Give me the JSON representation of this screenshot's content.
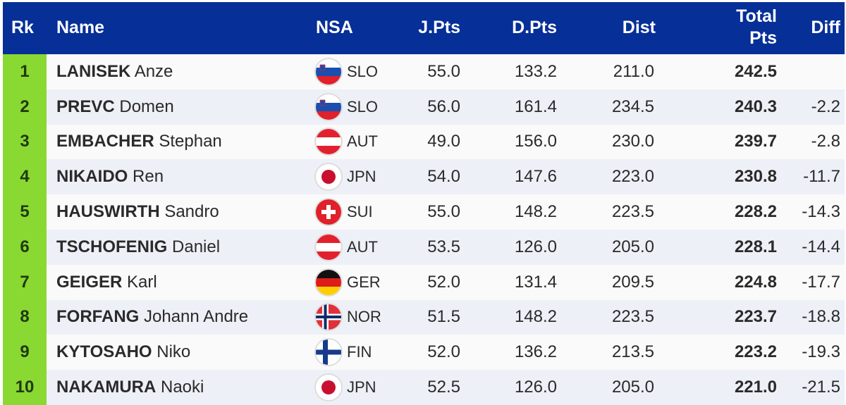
{
  "header": {
    "rank": "Rk",
    "name": "Name",
    "nsa": "NSA",
    "jpts": "J.Pts",
    "dpts": "D.Pts",
    "dist": "Dist",
    "total_line1": "Total",
    "total_line2": "Pts",
    "diff": "Diff"
  },
  "colors": {
    "header_bg": "#062f97",
    "rank_bg": "#8ad832"
  },
  "rows": [
    {
      "rank": "1",
      "last": "LANISEK",
      "first": "Anze",
      "nsa": "SLO",
      "flag": "slovenia-flag-icon",
      "jpts": "55.0",
      "dpts": "133.2",
      "dist": "211.0",
      "total": "242.5",
      "diff": ""
    },
    {
      "rank": "2",
      "last": "PREVC",
      "first": "Domen",
      "nsa": "SLO",
      "flag": "slovenia-flag-icon",
      "jpts": "56.0",
      "dpts": "161.4",
      "dist": "234.5",
      "total": "240.3",
      "diff": "-2.2"
    },
    {
      "rank": "3",
      "last": "EMBACHER",
      "first": "Stephan",
      "nsa": "AUT",
      "flag": "austria-flag-icon",
      "jpts": "49.0",
      "dpts": "156.0",
      "dist": "230.0",
      "total": "239.7",
      "diff": "-2.8"
    },
    {
      "rank": "4",
      "last": "NIKAIDO",
      "first": "Ren",
      "nsa": "JPN",
      "flag": "japan-flag-icon",
      "jpts": "54.0",
      "dpts": "147.6",
      "dist": "223.0",
      "total": "230.8",
      "diff": "-11.7"
    },
    {
      "rank": "5",
      "last": "HAUSWIRTH",
      "first": "Sandro",
      "nsa": "SUI",
      "flag": "switzerland-flag-icon",
      "jpts": "55.0",
      "dpts": "148.2",
      "dist": "223.5",
      "total": "228.2",
      "diff": "-14.3"
    },
    {
      "rank": "6",
      "last": "TSCHOFENIG",
      "first": "Daniel",
      "nsa": "AUT",
      "flag": "austria-flag-icon",
      "jpts": "53.5",
      "dpts": "126.0",
      "dist": "205.0",
      "total": "228.1",
      "diff": "-14.4"
    },
    {
      "rank": "7",
      "last": "GEIGER",
      "first": "Karl",
      "nsa": "GER",
      "flag": "germany-flag-icon",
      "jpts": "52.0",
      "dpts": "131.4",
      "dist": "209.5",
      "total": "224.8",
      "diff": "-17.7"
    },
    {
      "rank": "8",
      "last": "FORFANG",
      "first": "Johann Andre",
      "nsa": "NOR",
      "flag": "norway-flag-icon",
      "jpts": "51.5",
      "dpts": "148.2",
      "dist": "223.5",
      "total": "223.7",
      "diff": "-18.8"
    },
    {
      "rank": "9",
      "last": "KYTOSAHO",
      "first": "Niko",
      "nsa": "FIN",
      "flag": "finland-flag-icon",
      "jpts": "52.0",
      "dpts": "136.2",
      "dist": "213.5",
      "total": "223.2",
      "diff": "-19.3"
    },
    {
      "rank": "10",
      "last": "NAKAMURA",
      "first": "Naoki",
      "nsa": "JPN",
      "flag": "japan-flag-icon",
      "jpts": "52.5",
      "dpts": "126.0",
      "dist": "205.0",
      "total": "221.0",
      "diff": "-21.5"
    }
  ]
}
